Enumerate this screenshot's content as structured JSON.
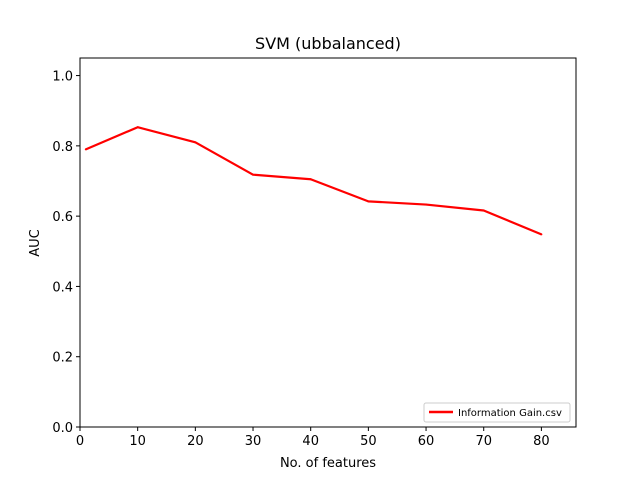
{
  "chart_data": {
    "type": "line",
    "title": "SVM (ubbalanced)",
    "xlabel": "No. of features",
    "ylabel": "AUC",
    "xlim": [
      0,
      86
    ],
    "ylim": [
      0.0,
      1.05
    ],
    "xticks": [
      0,
      10,
      20,
      30,
      40,
      50,
      60,
      70,
      80
    ],
    "yticks": [
      0.0,
      0.2,
      0.4,
      0.6,
      0.8,
      1.0
    ],
    "xtick_labels": [
      "0",
      "10",
      "20",
      "30",
      "40",
      "50",
      "60",
      "70",
      "80"
    ],
    "ytick_labels": [
      "0.0",
      "0.2",
      "0.4",
      "0.6",
      "0.8",
      "1.0"
    ],
    "grid": false,
    "legend_position": "lower-right",
    "series": [
      {
        "name": "Information Gain.csv",
        "color": "#ff0000",
        "x": [
          1,
          10,
          20,
          30,
          40,
          50,
          60,
          70,
          80
        ],
        "y": [
          0.79,
          0.853,
          0.81,
          0.718,
          0.705,
          0.642,
          0.633,
          0.616,
          0.548
        ]
      }
    ]
  }
}
